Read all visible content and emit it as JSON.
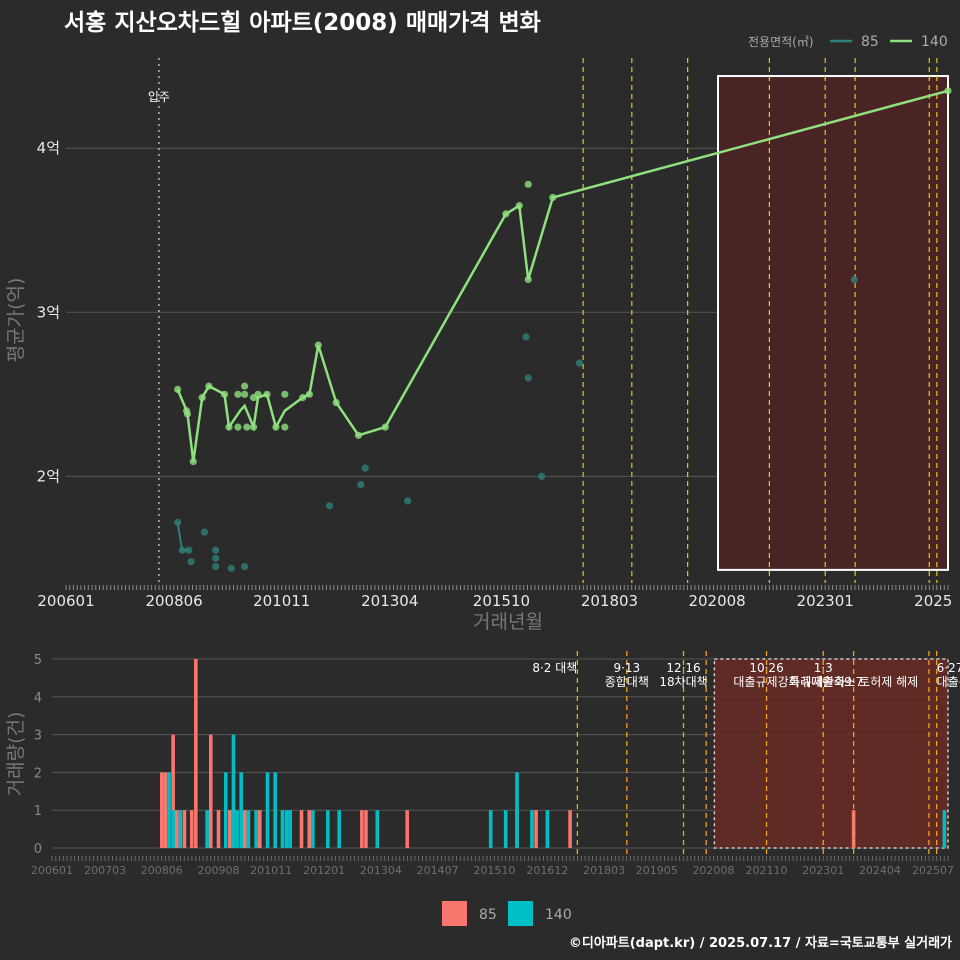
{
  "title": "서홍 지산오차드힐 아파트(2008) 매매가격 변화",
  "caption": "©디아파트(dapt.kr) / 2025.07.17 / 자료=국토교통부 실거래가",
  "colors": {
    "background": "#2b2b2b",
    "series85_line": "#2f7f7a",
    "series140_line": "#8fe07f",
    "bar85": "#f8766d",
    "bar140": "#00bfc4",
    "policy_line": "#e6c619",
    "policy_line_bottom": "#f0a41a",
    "highlight_fill": "#4a2325",
    "highlight_fill_bottom": "#6a2a25",
    "grid": "#555555",
    "move_in_line": "#bbbbbb"
  },
  "chart_data": [
    {
      "type": "line",
      "name": "price",
      "xlabel": "거래년월",
      "ylabel": "평균가(억)",
      "xlim": [
        2006.0,
        2025.75
      ],
      "ylim": [
        1.35,
        4.55
      ],
      "x_ticks": [
        {
          "x": 2006.0,
          "label": "200601"
        },
        {
          "x": 2008.42,
          "label": "200806"
        },
        {
          "x": 2010.83,
          "label": "201011"
        },
        {
          "x": 2013.25,
          "label": "201304"
        },
        {
          "x": 2015.75,
          "label": "201510"
        },
        {
          "x": 2018.17,
          "label": "201803"
        },
        {
          "x": 2020.58,
          "label": "202008"
        },
        {
          "x": 2023.0,
          "label": "202301"
        },
        {
          "x": 2025.42,
          "label": "2025"
        }
      ],
      "y_ticks": [
        {
          "y": 2,
          "label": "2억"
        },
        {
          "y": 3,
          "label": "3억"
        },
        {
          "y": 4,
          "label": "4억"
        }
      ],
      "legend_title": "전용면적(㎡)",
      "legend": [
        "85",
        "140"
      ],
      "move_in": {
        "x": 2008.08,
        "label": "입주"
      },
      "policy_dates": [
        2017.58,
        2018.67,
        2019.92,
        2021.75,
        2023.0,
        2023.67,
        2025.33,
        2025.5
      ],
      "highlight": {
        "x0": 2020.6,
        "x1": 2025.75,
        "y0": 1.43,
        "y1": 4.44
      },
      "series": [
        {
          "name": "85",
          "line": [
            [
              2008.5,
              1.72
            ],
            [
              2008.6,
              1.55
            ],
            [
              2008.75,
              1.55
            ]
          ],
          "points": [
            [
              2008.5,
              1.72
            ],
            [
              2008.6,
              1.55
            ],
            [
              2008.75,
              1.55
            ],
            [
              2008.8,
              1.48
            ],
            [
              2009.1,
              1.66
            ],
            [
              2009.35,
              1.55
            ],
            [
              2009.35,
              1.5
            ],
            [
              2009.35,
              1.45
            ],
            [
              2009.7,
              1.44
            ],
            [
              2010.0,
              1.45
            ],
            [
              2011.9,
              1.82
            ],
            [
              2012.6,
              1.95
            ],
            [
              2012.7,
              2.05
            ],
            [
              2013.65,
              1.85
            ],
            [
              2016.3,
              2.85
            ],
            [
              2016.35,
              2.6
            ],
            [
              2016.65,
              2.0
            ],
            [
              2017.5,
              2.69
            ],
            [
              2023.65,
              3.2
            ]
          ]
        },
        {
          "name": "140",
          "line": [
            [
              2008.5,
              2.53
            ],
            [
              2008.7,
              2.4
            ],
            [
              2008.72,
              2.38
            ],
            [
              2008.85,
              2.09
            ],
            [
              2009.05,
              2.48
            ],
            [
              2009.2,
              2.55
            ],
            [
              2009.55,
              2.5
            ],
            [
              2009.65,
              2.3
            ],
            [
              2009.9,
              2.4
            ],
            [
              2010.0,
              2.43
            ],
            [
              2010.2,
              2.3
            ],
            [
              2010.3,
              2.48
            ],
            [
              2010.5,
              2.5
            ],
            [
              2010.7,
              2.3
            ],
            [
              2010.9,
              2.4
            ],
            [
              2011.3,
              2.48
            ],
            [
              2011.45,
              2.5
            ],
            [
              2011.65,
              2.8
            ],
            [
              2012.05,
              2.45
            ],
            [
              2012.55,
              2.25
            ],
            [
              2013.15,
              2.3
            ],
            [
              2015.85,
              3.6
            ],
            [
              2016.15,
              3.65
            ],
            [
              2016.35,
              3.2
            ],
            [
              2016.9,
              3.7
            ],
            [
              2025.75,
              4.35
            ]
          ],
          "points": [
            [
              2008.5,
              2.53
            ],
            [
              2008.7,
              2.4
            ],
            [
              2008.72,
              2.38
            ],
            [
              2008.85,
              2.09
            ],
            [
              2009.05,
              2.48
            ],
            [
              2009.2,
              2.55
            ],
            [
              2009.55,
              2.5
            ],
            [
              2009.65,
              2.3
            ],
            [
              2009.85,
              2.3
            ],
            [
              2009.85,
              2.5
            ],
            [
              2010.0,
              2.55
            ],
            [
              2010.0,
              2.5
            ],
            [
              2010.05,
              2.3
            ],
            [
              2010.2,
              2.3
            ],
            [
              2010.2,
              2.48
            ],
            [
              2010.3,
              2.5
            ],
            [
              2010.5,
              2.5
            ],
            [
              2010.7,
              2.3
            ],
            [
              2010.9,
              2.3
            ],
            [
              2010.9,
              2.5
            ],
            [
              2011.3,
              2.48
            ],
            [
              2011.45,
              2.5
            ],
            [
              2011.65,
              2.8
            ],
            [
              2012.05,
              2.45
            ],
            [
              2012.55,
              2.25
            ],
            [
              2013.15,
              2.3
            ],
            [
              2015.85,
              3.6
            ],
            [
              2016.15,
              3.65
            ],
            [
              2016.35,
              3.78
            ],
            [
              2016.35,
              3.2
            ],
            [
              2016.9,
              3.7
            ],
            [
              2025.75,
              4.35
            ]
          ]
        }
      ]
    },
    {
      "type": "bar",
      "name": "volume",
      "xlabel": "",
      "ylabel": "거래량(건)",
      "xlim": [
        2006.0,
        2025.75
      ],
      "ylim": [
        0,
        5
      ],
      "x_ticks": [
        {
          "x": 2006.0,
          "label": "200601"
        },
        {
          "x": 2007.17,
          "label": "200703"
        },
        {
          "x": 2008.42,
          "label": "200806"
        },
        {
          "x": 2009.67,
          "label": "200908"
        },
        {
          "x": 2010.83,
          "label": "201011"
        },
        {
          "x": 2012.0,
          "label": "201201"
        },
        {
          "x": 2013.25,
          "label": "201304"
        },
        {
          "x": 2014.5,
          "label": "201407"
        },
        {
          "x": 2015.75,
          "label": "201510"
        },
        {
          "x": 2016.92,
          "label": "201612"
        },
        {
          "x": 2018.17,
          "label": "201803"
        },
        {
          "x": 2019.33,
          "label": "201905"
        },
        {
          "x": 2020.58,
          "label": "202008"
        },
        {
          "x": 2021.75,
          "label": "202110"
        },
        {
          "x": 2023.0,
          "label": "202301"
        },
        {
          "x": 2024.25,
          "label": "202404"
        },
        {
          "x": 2025.42,
          "label": "202507"
        }
      ],
      "y_ticks": [
        0,
        1,
        2,
        3,
        4,
        5
      ],
      "legend": [
        "85",
        "140"
      ],
      "highlight": {
        "x0": 2020.6,
        "x1": 2025.75,
        "y0": 0,
        "y1": 5
      },
      "policy_dates": [
        2017.58,
        2018.67,
        2019.92,
        2020.42,
        2021.75,
        2023.0,
        2023.67,
        2025.33,
        2025.5
      ],
      "policies": [
        {
          "x": 2017.58,
          "lines": [
            "8·2 대책"
          ],
          "anchor": "end"
        },
        {
          "x": 2018.67,
          "lines": [
            "9·13",
            "종합대책"
          ],
          "anchor": "middle"
        },
        {
          "x": 2019.92,
          "lines": [
            "12·16",
            "18차대책"
          ],
          "anchor": "middle"
        },
        {
          "x": 2021.75,
          "lines": [
            "10·26",
            "대출규제강화"
          ],
          "anchor": "middle"
        },
        {
          "x": 2023.0,
          "lines": [
            "1·3",
            "규제완화"
          ],
          "anchor": "middle"
        },
        {
          "x": 2023.67,
          "lines": [
            "",
            "9·7"
          ],
          "anchor": "middle"
        },
        {
          "x": 2023.67,
          "lines": [
            "",
            "",
            "특례대출축소 토허제 해제"
          ],
          "anchor": "middle"
        },
        {
          "x": 2025.5,
          "lines": [
            "6·27",
            "대출규제"
          ],
          "anchor": "start"
        }
      ],
      "series": [
        {
          "name": "85",
          "bars": [
            [
              2008.42,
              2
            ],
            [
              2008.5,
              2
            ],
            [
              2008.67,
              3
            ],
            [
              2008.75,
              1
            ],
            [
              2008.92,
              1
            ],
            [
              2009.08,
              1
            ],
            [
              2009.17,
              5
            ],
            [
              2009.5,
              3
            ],
            [
              2009.67,
              1
            ],
            [
              2009.92,
              1
            ],
            [
              2010.25,
              1
            ],
            [
              2010.58,
              1
            ],
            [
              2011.5,
              1
            ],
            [
              2011.67,
              1
            ],
            [
              2012.83,
              1
            ],
            [
              2012.92,
              1
            ],
            [
              2013.83,
              1
            ],
            [
              2016.25,
              1
            ],
            [
              2016.67,
              1
            ],
            [
              2017.42,
              1
            ],
            [
              2023.67,
              1
            ]
          ]
        },
        {
          "name": "140",
          "bars": [
            [
              2008.58,
              2
            ],
            [
              2008.67,
              1
            ],
            [
              2008.83,
              1
            ],
            [
              2009.42,
              1
            ],
            [
              2009.83,
              2
            ],
            [
              2010.0,
              3
            ],
            [
              2010.08,
              1
            ],
            [
              2010.17,
              2
            ],
            [
              2010.33,
              1
            ],
            [
              2010.5,
              1
            ],
            [
              2010.75,
              2
            ],
            [
              2010.92,
              2
            ],
            [
              2011.08,
              1
            ],
            [
              2011.17,
              1
            ],
            [
              2011.25,
              1
            ],
            [
              2011.75,
              1
            ],
            [
              2012.08,
              1
            ],
            [
              2012.33,
              1
            ],
            [
              2013.17,
              1
            ],
            [
              2015.67,
              1
            ],
            [
              2016.0,
              1
            ],
            [
              2016.25,
              2
            ],
            [
              2016.58,
              1
            ],
            [
              2016.92,
              1
            ],
            [
              2025.67,
              1
            ]
          ]
        }
      ]
    }
  ]
}
